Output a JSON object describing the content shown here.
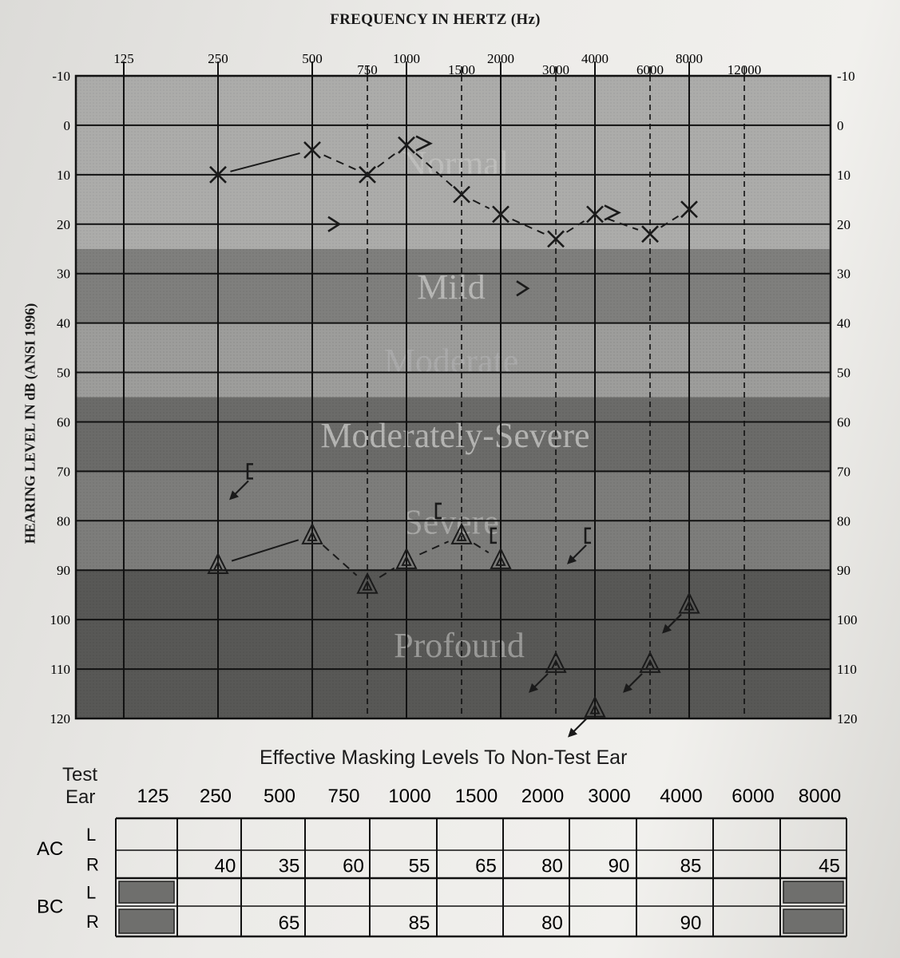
{
  "header": {
    "title": "FREQUENCY IN HERTZ (Hz)",
    "y_axis_label": "HEARING LEVEL IN dB (ANSI 1996)"
  },
  "chart_data": {
    "type": "scatter",
    "title": "FREQUENCY IN HERTZ (Hz)",
    "ylabel": "HEARING LEVEL IN dB (ANSI 1996)",
    "x_scale": "log",
    "y_inverted": true,
    "ylim": [
      -10,
      120
    ],
    "grid": true,
    "x_ticks_upper": [
      "125",
      "250",
      "500",
      "1000",
      "2000",
      "4000",
      "8000"
    ],
    "x_ticks_lower": [
      "750",
      "1500",
      "3000",
      "6000",
      "12000"
    ],
    "y_ticks": [
      "-10",
      "0",
      "10",
      "20",
      "30",
      "40",
      "50",
      "60",
      "70",
      "80",
      "90",
      "100",
      "110",
      "120"
    ],
    "severity_bands": [
      {
        "label": "Normal",
        "from": -10,
        "to": 25
      },
      {
        "label": "Mild",
        "from": 25,
        "to": 40
      },
      {
        "label": "Moderate",
        "from": 40,
        "to": 55
      },
      {
        "label": "Moderately-Severe",
        "from": 55,
        "to": 70
      },
      {
        "label": "Severe",
        "from": 70,
        "to": 90
      },
      {
        "label": "Profound",
        "from": 90,
        "to": 120
      }
    ],
    "series": [
      {
        "symbol": "X",
        "kind": "air-left",
        "points": [
          [
            250,
            10
          ],
          [
            500,
            5
          ],
          [
            750,
            10
          ],
          [
            1000,
            4
          ],
          [
            1500,
            14
          ],
          [
            2000,
            18
          ],
          [
            3000,
            23
          ],
          [
            4000,
            18
          ],
          [
            6000,
            22
          ],
          [
            8000,
            17
          ]
        ]
      },
      {
        "symbol": "Δ",
        "kind": "air-right-masked",
        "points": [
          [
            250,
            89
          ],
          [
            500,
            83
          ],
          [
            750,
            93
          ],
          [
            1000,
            88
          ],
          [
            1500,
            83
          ],
          [
            2000,
            88
          ],
          [
            3000,
            109
          ],
          [
            4000,
            118
          ],
          [
            6000,
            109
          ],
          [
            8000,
            97
          ]
        ],
        "no_response": [
          3000,
          4000,
          6000,
          8000
        ]
      },
      {
        "symbol": ">",
        "kind": "bone-left",
        "points": [
          [
            500,
            20
          ],
          [
            2000,
            33
          ]
        ]
      },
      {
        "symbol": "]",
        "kind": "bone-right-masked",
        "points": [
          [
            250,
            70
          ],
          [
            1000,
            78
          ],
          [
            1500,
            83
          ],
          [
            3000,
            83
          ]
        ],
        "no_response": [
          250,
          3000
        ]
      },
      {
        "symbol": ">",
        "kind": "speech-left",
        "points": [
          [
            1000,
            4
          ],
          [
            4000,
            18
          ]
        ]
      }
    ]
  },
  "masking_table": {
    "title": "Effective Masking Levels To Non-Test Ear",
    "test_ear_label": [
      "Test",
      "Ear"
    ],
    "frequencies": [
      "125",
      "250",
      "500",
      "750",
      "1000",
      "1500",
      "2000",
      "3000",
      "4000",
      "6000",
      "8000"
    ],
    "rows": [
      {
        "group": "AC",
        "ear": "L",
        "values": [
          "",
          "",
          "",
          "",
          "",
          "",
          "",
          "",
          "",
          "",
          ""
        ]
      },
      {
        "group": "",
        "ear": "R",
        "values": [
          "",
          "40",
          "35",
          "60",
          "55",
          "65",
          "80",
          "90",
          "85",
          "",
          "45"
        ]
      },
      {
        "group": "BC",
        "ear": "L",
        "values": [
          "",
          "",
          "",
          "",
          "",
          "",
          "",
          "",
          "",
          "",
          ""
        ]
      },
      {
        "group": "",
        "ear": "R",
        "values": [
          "",
          "",
          "65",
          "",
          "85",
          "",
          "80",
          "",
          "90",
          "",
          ""
        ]
      }
    ]
  }
}
